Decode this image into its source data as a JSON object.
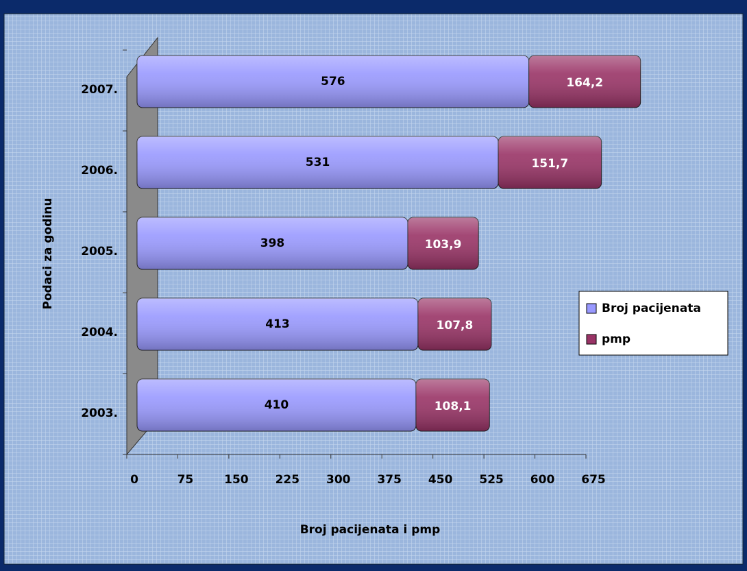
{
  "chart_data": {
    "type": "stacked-bar",
    "orientation": "horizontal",
    "x_label": "Broj pacijenata i pmp",
    "y_label": "Podaci za godinu",
    "categories": [
      "2003.",
      "2004.",
      "2005.",
      "2006.",
      "2007."
    ],
    "series": [
      {
        "name": "Broj pacijenata",
        "color": "#9999ff",
        "values": [
          410,
          413,
          398,
          531,
          576
        ]
      },
      {
        "name": "pmp",
        "color": "#993366",
        "values": [
          108.1,
          107.8,
          103.9,
          151.7,
          164.2
        ],
        "value_labels": [
          "108,1",
          "107,8",
          "103,9",
          "151,7",
          "164,2"
        ]
      }
    ],
    "xlim": [
      0,
      750
    ],
    "xticks": [
      0,
      75,
      150,
      225,
      300,
      375,
      450,
      525,
      600,
      675
    ],
    "legend": "right"
  }
}
